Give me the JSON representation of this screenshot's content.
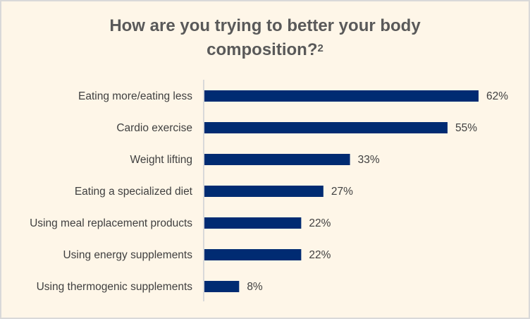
{
  "chart_data": {
    "type": "bar",
    "orientation": "horizontal",
    "title": "How are you trying to better your body composition?",
    "title_line1": "How are you trying to better your body",
    "title_line2": "composition?",
    "title_superscript": "2",
    "categories": [
      "Eating more/eating less",
      "Cardio exercise",
      "Weight lifting",
      "Eating a specialized diet",
      "Using meal replacement products",
      "Using energy supplements",
      "Using thermogenic supplements"
    ],
    "values": [
      62,
      55,
      33,
      27,
      22,
      22,
      8
    ],
    "value_labels": [
      "62%",
      "55%",
      "33%",
      "27%",
      "22%",
      "22%",
      "8%"
    ],
    "unit": "%",
    "xlim": [
      0,
      62
    ],
    "grid": false,
    "legend": "none",
    "bar_color": "#002b72",
    "background_color": "#fef6e8"
  }
}
